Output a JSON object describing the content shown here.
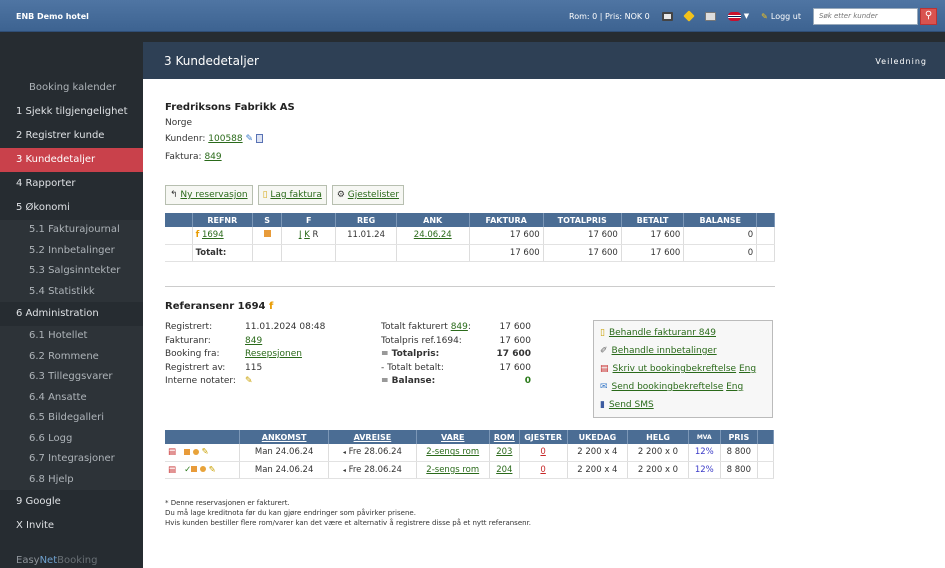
{
  "header": {
    "hotel": "ENB Demo hotel",
    "room_price": "Rom: 0 | Pris: NOK 0",
    "logout": "Logg ut",
    "search_placeholder": "Søk etter kunder"
  },
  "sidebar": {
    "items": [
      {
        "label": "Booking kalender",
        "type": "sub0",
        "active": false
      },
      {
        "label": "1  Sjekk tilgjengelighet",
        "type": "top",
        "active": false
      },
      {
        "label": "2  Registrer kunde",
        "type": "top",
        "active": false
      },
      {
        "label": "3  Kundedetaljer",
        "type": "top",
        "active": true
      },
      {
        "label": "4  Rapporter",
        "type": "top",
        "active": false
      },
      {
        "label": "5  Økonomi",
        "type": "top",
        "active": false
      },
      {
        "label": "5.1 Fakturajournal",
        "type": "sub",
        "active": false
      },
      {
        "label": "5.2 Innbetalinger",
        "type": "sub",
        "active": false
      },
      {
        "label": "5.3 Salgsinntekter",
        "type": "sub",
        "active": false
      },
      {
        "label": "5.4 Statistikk",
        "type": "sub",
        "active": false
      },
      {
        "label": "6  Administration",
        "type": "top",
        "active": false
      },
      {
        "label": "6.1 Hotellet",
        "type": "sub",
        "active": false
      },
      {
        "label": "6.2 Rommene",
        "type": "sub",
        "active": false
      },
      {
        "label": "6.3 Tilleggsvarer",
        "type": "sub",
        "active": false
      },
      {
        "label": "6.4 Ansatte",
        "type": "sub",
        "active": false
      },
      {
        "label": "6.5 Bildegalleri",
        "type": "sub",
        "active": false
      },
      {
        "label": "6.6 Logg",
        "type": "sub",
        "active": false
      },
      {
        "label": "6.7 Integrasjoner",
        "type": "sub",
        "active": false
      },
      {
        "label": "6.8 Hjelp",
        "type": "sub",
        "active": false
      },
      {
        "label": "9  Google",
        "type": "top",
        "active": false
      },
      {
        "label": "X  Invite",
        "type": "top",
        "active": false
      }
    ],
    "logo": {
      "a": "Easy",
      "b": "Net",
      "c": "Booking"
    }
  },
  "page": {
    "title": "3 Kundedetaljer",
    "help": "Veiledning"
  },
  "customer": {
    "name": "Fredriksons Fabrikk AS",
    "country": "Norge",
    "custno_label": "Kundenr:",
    "custno": "100588",
    "invoice_label": "Faktura:",
    "invoice": "849"
  },
  "actions": {
    "new_res": "Ny reservasjon",
    "make_invoice": "Lag faktura",
    "guestlists": "Gjestelister"
  },
  "res_table": {
    "headers": [
      "REFNR",
      "S",
      "F",
      "REG",
      "ANK",
      "FAKTURA",
      "TOTALPRIS",
      "BETALT",
      "BALANSE"
    ],
    "row": {
      "flag": "f",
      "refnr": "1694",
      "f1": "J",
      "f2": "K",
      "f3": "R",
      "reg": "11.01.24",
      "ank": "24.06.24",
      "faktura": "17 600",
      "totalpris": "17 600",
      "betalt": "17 600",
      "balanse": "0"
    },
    "total": {
      "label": "Totalt:",
      "faktura": "17 600",
      "totalpris": "17 600",
      "betalt": "17 600",
      "balanse": "0"
    }
  },
  "ref": {
    "title": "Referansenr 1694",
    "flag": "f",
    "left": [
      {
        "k": "Registrert:",
        "v": "11.01.2024 08:48",
        "link": false
      },
      {
        "k": "Fakturanr:",
        "v": "849",
        "link": true
      },
      {
        "k": "Booking fra:",
        "v": "Resepsjonen",
        "link": true
      },
      {
        "k": "Registrert av:",
        "v": "115",
        "link": false
      },
      {
        "k": "Interne notater:",
        "v": "",
        "link": false
      }
    ],
    "mid": [
      {
        "k": "Totalt fakturert",
        "k2": "849",
        "k3": ":",
        "v": "17 600",
        "bold": false
      },
      {
        "k": "Totalpris ref.1694:",
        "k2": "",
        "k3": "",
        "v": "17 600",
        "bold": false
      },
      {
        "k": "= Totalpris:",
        "k2": "",
        "k3": "",
        "v": "17 600",
        "bold": true
      },
      {
        "k": "- Totalt betalt:",
        "k2": "",
        "k3": "",
        "v": "17 600",
        "bold": false
      },
      {
        "k": "= Balanse:",
        "k2": "",
        "k3": "",
        "v": "0",
        "bold": true
      }
    ],
    "box": [
      {
        "text": "Behandle fakturanr 849",
        "extra": "",
        "icon": "invoice-icon"
      },
      {
        "text": "Behandle innbetalinger",
        "extra": "",
        "icon": "payment-icon"
      },
      {
        "text": "Skriv ut bookingbekreftelse",
        "extra": "Eng",
        "icon": "pdf-icon"
      },
      {
        "text": "Send bookingbekreftelse",
        "extra": "Eng",
        "icon": "email-icon"
      },
      {
        "text": "Send SMS",
        "extra": "",
        "icon": "sms-icon"
      }
    ]
  },
  "rooms": {
    "headers": [
      "ANKOMST",
      "AVREISE",
      "VARE",
      "ROM",
      "GJESTER",
      "UKEDAG",
      "HELG",
      "MVA",
      "PRIS"
    ],
    "rows": [
      {
        "check": "",
        "ank": "Man 24.06.24",
        "avr": "Fre 28.06.24",
        "vare": "2-sengs rom",
        "rom": "203",
        "gjester": "0",
        "ukedag": "2 200 x 4",
        "helg": "2 200 x 0",
        "mva": "12%",
        "pris": "8 800"
      },
      {
        "check": "✓",
        "ank": "Man 24.06.24",
        "avr": "Fre 28.06.24",
        "vare": "2-sengs rom",
        "rom": "204",
        "gjester": "0",
        "ukedag": "2 200 x 4",
        "helg": "2 200 x 0",
        "mva": "12%",
        "pris": "8 800"
      }
    ]
  },
  "notes": [
    "* Denne reservasjonen er fakturert.",
    "Du må lage kreditnota før du kan gjøre endringer som påvirker prisene.",
    "Hvis kunden bestiller flere rom/varer kan det være et alternativ å registrere disse på et nytt referansenr."
  ]
}
